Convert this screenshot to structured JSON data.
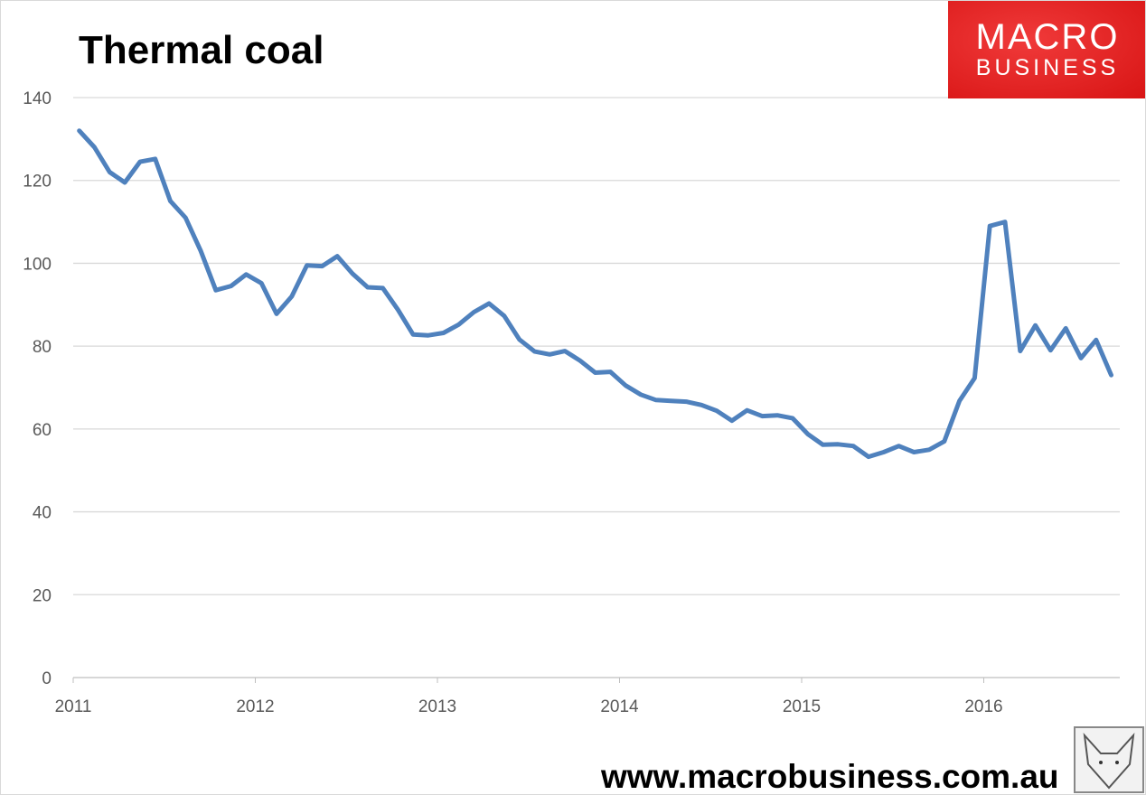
{
  "chart_data": {
    "type": "line",
    "title": "Thermal coal",
    "xlabel": "",
    "ylabel": "",
    "ylim": [
      0,
      140
    ],
    "yticks": [
      0,
      20,
      40,
      60,
      80,
      100,
      120,
      140
    ],
    "xticks": [
      "2011",
      "2012",
      "2013",
      "2014",
      "2015",
      "2016"
    ],
    "grid": "horizontal",
    "line_color": "#4f81bd",
    "series": [
      {
        "x": [
          "2011-01",
          "2011-02",
          "2011-03",
          "2011-04",
          "2011-05",
          "2011-06",
          "2011-07",
          "2011-08",
          "2011-09",
          "2011-10",
          "2011-11",
          "2011-12",
          "2012-01",
          "2012-02",
          "2012-03",
          "2012-04",
          "2012-05",
          "2012-06",
          "2012-07",
          "2012-08",
          "2012-09",
          "2012-10",
          "2012-11",
          "2012-12",
          "2013-01",
          "2013-02",
          "2013-03",
          "2013-04",
          "2013-05",
          "2013-06",
          "2013-07",
          "2013-08",
          "2013-09",
          "2013-10",
          "2013-11",
          "2013-12",
          "2014-01",
          "2014-02",
          "2014-03",
          "2014-04",
          "2014-05",
          "2014-06",
          "2014-07",
          "2014-08",
          "2014-09",
          "2014-10",
          "2014-11",
          "2014-12",
          "2015-01",
          "2015-02",
          "2015-03",
          "2015-04",
          "2015-05",
          "2015-06",
          "2015-07",
          "2015-08",
          "2015-09",
          "2015-10",
          "2015-11",
          "2015-12",
          "2016-01",
          "2016-02",
          "2016-03",
          "2016-04",
          "2016-05",
          "2016-06",
          "2016-07",
          "2016-08",
          "2016-09"
        ],
        "values": [
          132,
          128,
          122,
          119.5,
          124.5,
          125.2,
          115,
          111,
          103,
          93.5,
          94.5,
          97.3,
          95.2,
          87.8,
          92,
          99.5,
          99.3,
          101.7,
          97.5,
          94.2,
          94,
          88.8,
          82.8,
          82.6,
          83.2,
          85.2,
          88.2,
          90.3,
          87.3,
          81.6,
          78.7,
          78,
          78.8,
          76.5,
          73.6,
          73.8,
          70.5,
          68.3,
          67,
          66.8,
          66.6,
          65.8,
          64.4,
          62,
          64.5,
          63.1,
          63.3,
          62.6,
          58.8,
          56.2,
          56.3,
          55.9,
          53.3,
          54.4,
          55.9,
          54.4,
          55,
          57,
          66.8,
          72.3,
          109,
          110,
          78.8,
          85,
          79,
          84.3,
          77.1,
          81.5,
          73
        ]
      }
    ]
  },
  "branding": {
    "logo_line1": "MACRO",
    "logo_line2": "BUSINESS",
    "url": "www.macrobusiness.com.au",
    "logo_color": "#e02020"
  }
}
